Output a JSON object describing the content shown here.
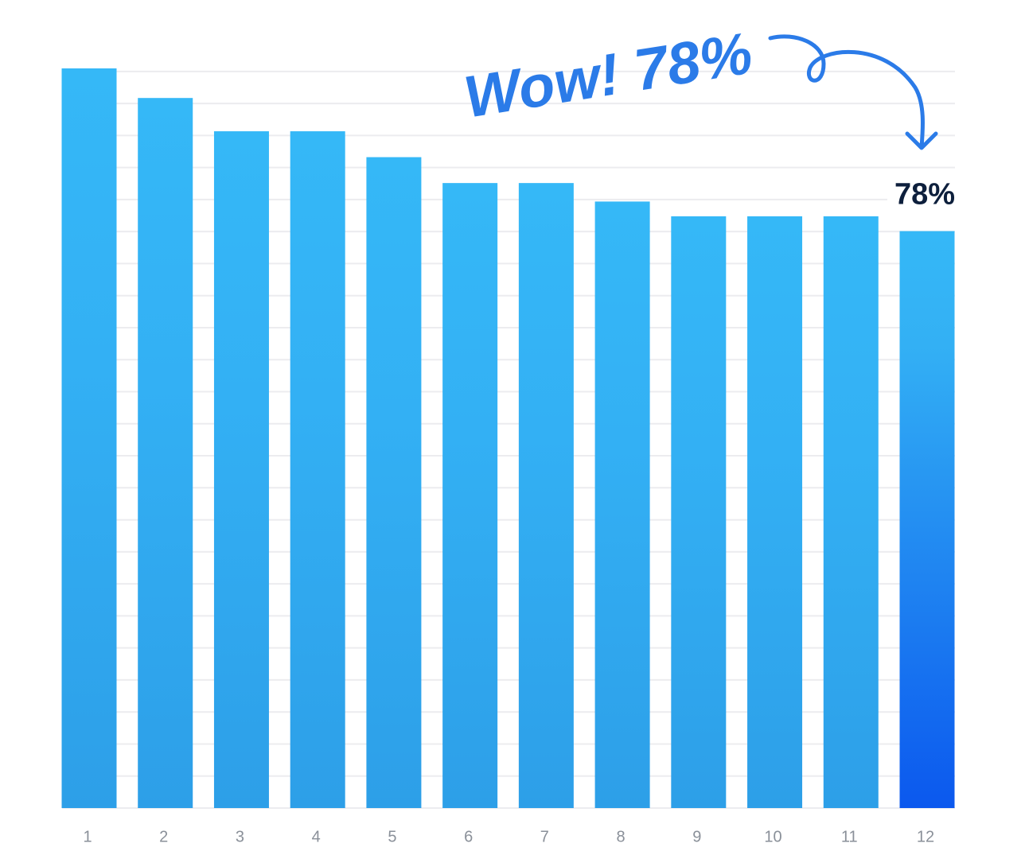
{
  "chart_data": {
    "type": "bar",
    "annotation": "Wow! 78%",
    "categories": [
      "1",
      "2",
      "3",
      "4",
      "5",
      "6",
      "7",
      "8",
      "9",
      "10",
      "11",
      "12"
    ],
    "values": [
      100,
      96,
      91.5,
      91.5,
      88,
      84.5,
      84.5,
      82,
      80,
      80,
      80,
      78
    ],
    "value_labels": [
      null,
      null,
      null,
      null,
      null,
      null,
      null,
      null,
      null,
      null,
      null,
      "78%"
    ],
    "colors": [
      "#2d9fe8",
      "#2d9fe8",
      "#2d9fe8",
      "#2d9fe8",
      "#2d9fe8",
      "#2d9fe8",
      "#2d9fe8",
      "#2d9fe8",
      "#2d9fe8",
      "#2d9fe8",
      "#2d9fe8",
      "#0b58ee"
    ],
    "ylim": [
      0,
      100
    ],
    "yticks": [
      0,
      4.33,
      8.66,
      12.99,
      17.32,
      21.65,
      25.98,
      30.31,
      34.64,
      38.97,
      43.3,
      47.63,
      51.96,
      56.29,
      60.62,
      64.95,
      69.28,
      73.61,
      77.94,
      82.27,
      86.6,
      90.93,
      95.26,
      99.59
    ],
    "grid": true
  }
}
